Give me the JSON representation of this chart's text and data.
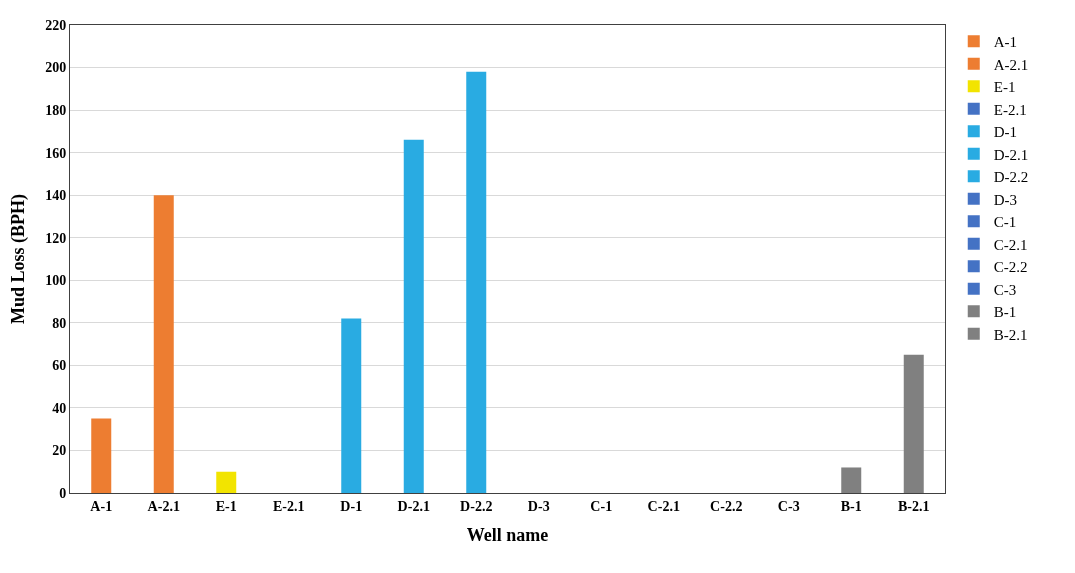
{
  "chart_data": {
    "type": "bar",
    "xlabel": "Well name",
    "ylabel": "Mud Loss (BPH)",
    "categories": [
      "A-1",
      "A-2.1",
      "E-1",
      "E-2.1",
      "D-1",
      "D-2.1",
      "D-2.2",
      "D-3",
      "C-1",
      "C-2.1",
      "C-2.2",
      "C-3",
      "B-1",
      "B-2.1"
    ],
    "series": [
      {
        "name": "A-1",
        "color": "#ed7d31",
        "values": [
          35,
          null,
          null,
          null,
          null,
          null,
          null,
          null,
          null,
          null,
          null,
          null,
          null,
          null
        ]
      },
      {
        "name": "A-2.1",
        "color": "#ed7d31",
        "values": [
          null,
          140,
          null,
          null,
          null,
          null,
          null,
          null,
          null,
          null,
          null,
          null,
          null,
          null
        ]
      },
      {
        "name": "E-1",
        "color": "#f2e400",
        "values": [
          null,
          null,
          10,
          null,
          null,
          null,
          null,
          null,
          null,
          null,
          null,
          null,
          null,
          null
        ]
      },
      {
        "name": "E-2.1",
        "color": "#4472c4",
        "values": [
          null,
          null,
          null,
          0,
          null,
          null,
          null,
          null,
          null,
          null,
          null,
          null,
          null,
          null
        ]
      },
      {
        "name": "D-1",
        "color": "#29abe2",
        "values": [
          null,
          null,
          null,
          null,
          82,
          null,
          null,
          null,
          null,
          null,
          null,
          null,
          null,
          null
        ]
      },
      {
        "name": "D-2.1",
        "color": "#29abe2",
        "values": [
          null,
          null,
          null,
          null,
          null,
          166,
          null,
          null,
          null,
          null,
          null,
          null,
          null,
          null
        ]
      },
      {
        "name": "D-2.2",
        "color": "#29abe2",
        "values": [
          null,
          null,
          null,
          null,
          null,
          null,
          198,
          null,
          null,
          null,
          null,
          null,
          null,
          null
        ]
      },
      {
        "name": "D-3",
        "color": "#4472c4",
        "values": [
          null,
          null,
          null,
          null,
          null,
          null,
          null,
          0,
          null,
          null,
          null,
          null,
          null,
          null
        ]
      },
      {
        "name": "C-1",
        "color": "#4472c4",
        "values": [
          null,
          null,
          null,
          null,
          null,
          null,
          null,
          null,
          0,
          null,
          null,
          null,
          null,
          null
        ]
      },
      {
        "name": "C-2.1",
        "color": "#4472c4",
        "values": [
          null,
          null,
          null,
          null,
          null,
          null,
          null,
          null,
          null,
          0,
          null,
          null,
          null,
          null
        ]
      },
      {
        "name": "C-2.2",
        "color": "#4472c4",
        "values": [
          null,
          null,
          null,
          null,
          null,
          null,
          null,
          null,
          null,
          null,
          0,
          null,
          null,
          null
        ]
      },
      {
        "name": "C-3",
        "color": "#4472c4",
        "values": [
          null,
          null,
          null,
          null,
          null,
          null,
          null,
          null,
          null,
          null,
          null,
          0,
          null,
          null
        ]
      },
      {
        "name": "B-1",
        "color": "#808080",
        "values": [
          null,
          null,
          null,
          null,
          null,
          null,
          null,
          null,
          null,
          null,
          null,
          null,
          12,
          null
        ]
      },
      {
        "name": "B-2.1",
        "color": "#808080",
        "values": [
          null,
          null,
          null,
          null,
          null,
          null,
          null,
          null,
          null,
          null,
          null,
          null,
          null,
          65
        ]
      }
    ],
    "ylim": [
      0,
      220
    ],
    "yticks": [
      0,
      20,
      40,
      60,
      80,
      100,
      120,
      140,
      160,
      180,
      200,
      220
    ],
    "grid": "y",
    "legend": "right"
  }
}
